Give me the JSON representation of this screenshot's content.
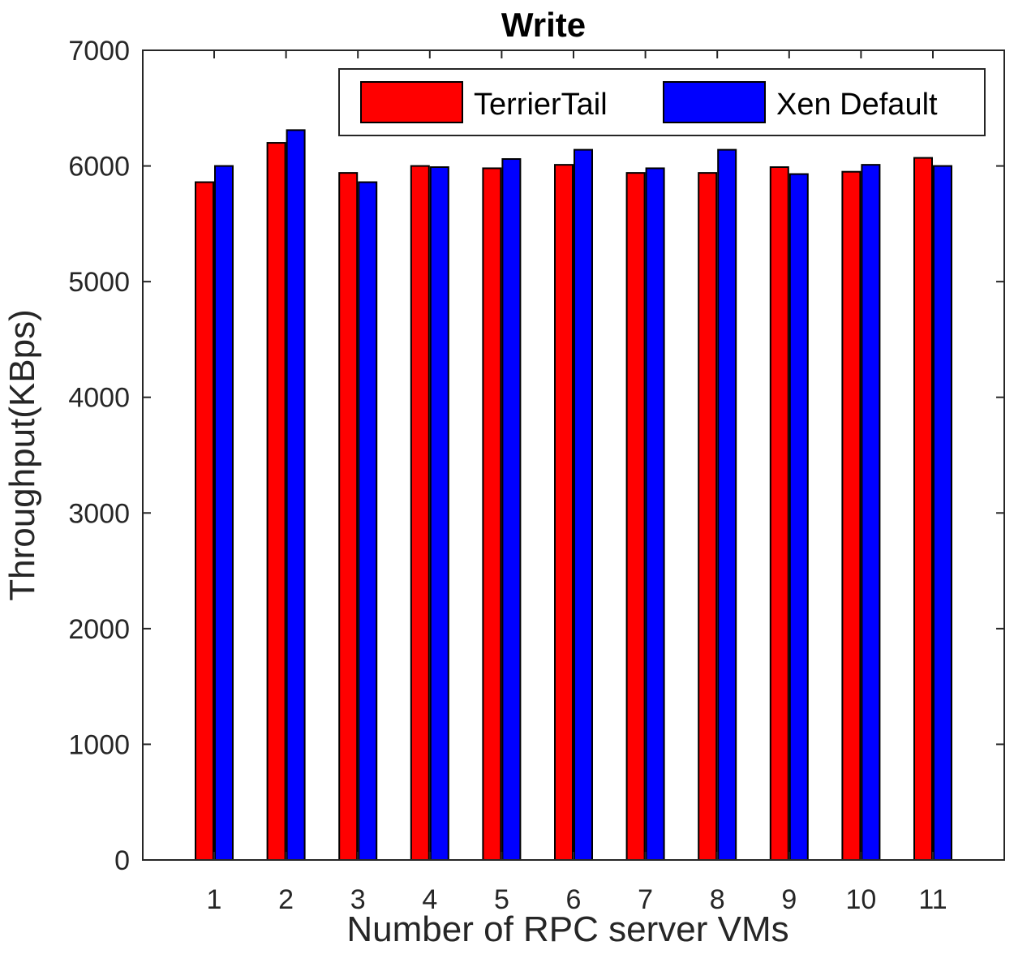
{
  "chart_data": {
    "type": "bar",
    "title": "Write",
    "xlabel": "Number of RPC server VMs",
    "ylabel": "Throughput(KBps)",
    "ylim": [
      0,
      7000
    ],
    "yticks": [
      0,
      1000,
      2000,
      3000,
      4000,
      5000,
      6000,
      7000
    ],
    "categories": [
      "1",
      "2",
      "3",
      "4",
      "5",
      "6",
      "7",
      "8",
      "9",
      "10",
      "11"
    ],
    "series": [
      {
        "name": "TerrierTail",
        "color": "#ff0000",
        "values": [
          5860,
          6200,
          5940,
          6000,
          5980,
          6010,
          5940,
          5940,
          5990,
          5950,
          6070
        ]
      },
      {
        "name": "Xen Default",
        "color": "#0000ff",
        "values": [
          6000,
          6310,
          5860,
          5990,
          6060,
          6140,
          5980,
          6140,
          5930,
          6010,
          6000
        ]
      }
    ],
    "legend": {
      "position": "top-right"
    },
    "grid": false
  }
}
